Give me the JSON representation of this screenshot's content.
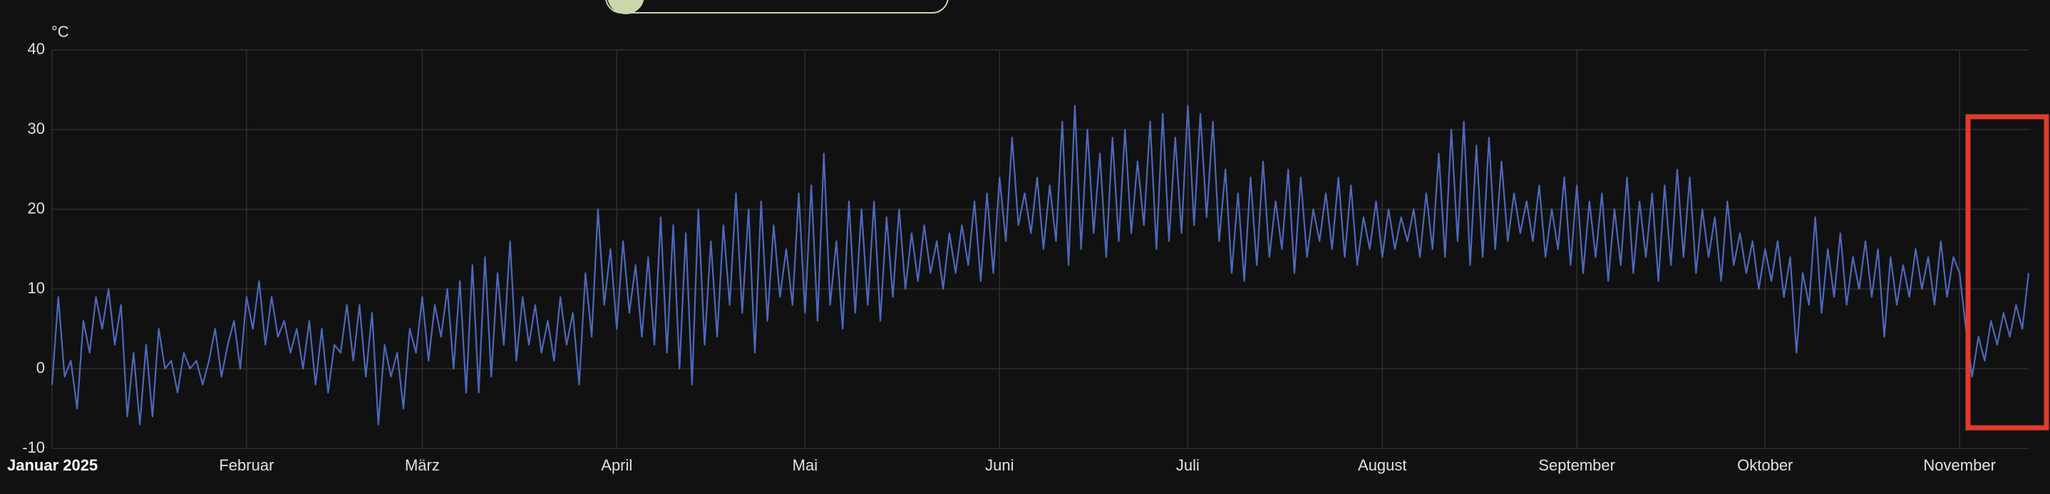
{
  "chart_data": {
    "type": "line",
    "y_label": "°C",
    "xlim": [
      0,
      315
    ],
    "xticks": [
      {
        "value": 0,
        "label": "Januar 2025"
      },
      {
        "value": 31,
        "label": "Februar"
      },
      {
        "value": 59,
        "label": "März"
      },
      {
        "value": 90,
        "label": "April"
      },
      {
        "value": 120,
        "label": "Mai"
      },
      {
        "value": 151,
        "label": "Juni"
      },
      {
        "value": 181,
        "label": "Juli"
      },
      {
        "value": 212,
        "label": "August"
      },
      {
        "value": 243,
        "label": "September"
      },
      {
        "value": 273,
        "label": "Oktober"
      },
      {
        "value": 304,
        "label": "November"
      }
    ],
    "ylim": [
      -10,
      40
    ],
    "yticks": [
      -10,
      0,
      10,
      20,
      30,
      40
    ],
    "grid": true,
    "x": [
      0,
      1,
      2,
      3,
      4,
      5,
      6,
      7,
      8,
      9,
      10,
      11,
      12,
      13,
      14,
      15,
      16,
      17,
      18,
      19,
      20,
      21,
      22,
      23,
      24,
      25,
      26,
      27,
      28,
      29,
      30,
      31,
      32,
      33,
      34,
      35,
      36,
      37,
      38,
      39,
      40,
      41,
      42,
      43,
      44,
      45,
      46,
      47,
      48,
      49,
      50,
      51,
      52,
      53,
      54,
      55,
      56,
      57,
      58,
      59,
      60,
      61,
      62,
      63,
      64,
      65,
      66,
      67,
      68,
      69,
      70,
      71,
      72,
      73,
      74,
      75,
      76,
      77,
      78,
      79,
      80,
      81,
      82,
      83,
      84,
      85,
      86,
      87,
      88,
      89,
      90,
      91,
      92,
      93,
      94,
      95,
      96,
      97,
      98,
      99,
      100,
      101,
      102,
      103,
      104,
      105,
      106,
      107,
      108,
      109,
      110,
      111,
      112,
      113,
      114,
      115,
      116,
      117,
      118,
      119,
      120,
      121,
      122,
      123,
      124,
      125,
      126,
      127,
      128,
      129,
      130,
      131,
      132,
      133,
      134,
      135,
      136,
      137,
      138,
      139,
      140,
      141,
      142,
      143,
      144,
      145,
      146,
      147,
      148,
      149,
      150,
      151,
      152,
      153,
      154,
      155,
      156,
      157,
      158,
      159,
      160,
      161,
      162,
      163,
      164,
      165,
      166,
      167,
      168,
      169,
      170,
      171,
      172,
      173,
      174,
      175,
      176,
      177,
      178,
      179,
      180,
      181,
      182,
      183,
      184,
      185,
      186,
      187,
      188,
      189,
      190,
      191,
      192,
      193,
      194,
      195,
      196,
      197,
      198,
      199,
      200,
      201,
      202,
      203,
      204,
      205,
      206,
      207,
      208,
      209,
      210,
      211,
      212,
      213,
      214,
      215,
      216,
      217,
      218,
      219,
      220,
      221,
      222,
      223,
      224,
      225,
      226,
      227,
      228,
      229,
      230,
      231,
      232,
      233,
      234,
      235,
      236,
      237,
      238,
      239,
      240,
      241,
      242,
      243,
      244,
      245,
      246,
      247,
      248,
      249,
      250,
      251,
      252,
      253,
      254,
      255,
      256,
      257,
      258,
      259,
      260,
      261,
      262,
      263,
      264,
      265,
      266,
      267,
      268,
      269,
      270,
      271,
      272,
      273,
      274,
      275,
      276,
      277,
      278,
      279,
      280,
      281,
      282,
      283,
      284,
      285,
      286,
      287,
      288,
      289,
      290,
      291,
      292,
      293,
      294,
      295,
      296,
      297,
      298,
      299,
      300,
      301,
      302,
      303,
      304,
      305,
      306,
      307,
      308,
      309,
      310,
      311,
      312,
      313,
      314,
      315
    ],
    "series": [
      {
        "color": "#4d68bd",
        "values": [
          -2,
          9,
          -1,
          1,
          -5,
          6,
          2,
          9,
          5,
          10,
          3,
          8,
          -6,
          2,
          -7,
          3,
          -6,
          5,
          0,
          1,
          -3,
          2,
          0,
          1,
          -2,
          1,
          5,
          -1,
          3,
          6,
          0,
          9,
          5,
          11,
          3,
          9,
          4,
          6,
          2,
          5,
          0,
          6,
          -2,
          5,
          -3,
          3,
          2,
          8,
          1,
          8,
          -1,
          7,
          -7,
          3,
          -1,
          2,
          -5,
          5,
          2,
          9,
          1,
          8,
          4,
          10,
          0,
          11,
          -3,
          13,
          -3,
          14,
          -1,
          12,
          3,
          16,
          1,
          9,
          3,
          8,
          2,
          6,
          1,
          9,
          3,
          7,
          -2,
          12,
          4,
          20,
          8,
          15,
          5,
          16,
          7,
          13,
          4,
          14,
          3,
          19,
          2,
          18,
          0,
          17,
          -2,
          20,
          3,
          16,
          4,
          18,
          8,
          22,
          7,
          20,
          2,
          21,
          6,
          18,
          9,
          15,
          8,
          22,
          7,
          23,
          6,
          27,
          8,
          16,
          5,
          21,
          7,
          20,
          8,
          21,
          6,
          19,
          9,
          20,
          10,
          17,
          11,
          18,
          12,
          16,
          10,
          17,
          12,
          18,
          13,
          21,
          11,
          22,
          12,
          24,
          16,
          29,
          18,
          22,
          17,
          24,
          15,
          23,
          16,
          31,
          13,
          33,
          15,
          30,
          17,
          27,
          14,
          29,
          16,
          30,
          17,
          26,
          18,
          31,
          15,
          32,
          16,
          29,
          17,
          33,
          18,
          32,
          19,
          31,
          16,
          25,
          12,
          22,
          11,
          24,
          13,
          26,
          14,
          21,
          15,
          25,
          12,
          24,
          14,
          20,
          16,
          22,
          15,
          24,
          14,
          23,
          13,
          19,
          15,
          21,
          14,
          20,
          15,
          19,
          16,
          20,
          14,
          22,
          15,
          27,
          14,
          30,
          16,
          31,
          13,
          28,
          14,
          29,
          15,
          26,
          16,
          22,
          17,
          21,
          16,
          23,
          14,
          20,
          15,
          24,
          13,
          23,
          12,
          21,
          14,
          22,
          11,
          20,
          13,
          24,
          12,
          21,
          14,
          22,
          11,
          23,
          13,
          25,
          14,
          24,
          12,
          20,
          14,
          19,
          11,
          21,
          13,
          17,
          12,
          16,
          10,
          15,
          11,
          16,
          9,
          14,
          2,
          12,
          8,
          19,
          7,
          15,
          9,
          17,
          8,
          14,
          10,
          16,
          9,
          15,
          4,
          14,
          8,
          13,
          9,
          15,
          10,
          14,
          8,
          16,
          9,
          14,
          12,
          5,
          -1,
          4,
          1,
          6,
          3,
          7,
          4,
          8,
          5,
          12
        ]
      }
    ]
  }
}
